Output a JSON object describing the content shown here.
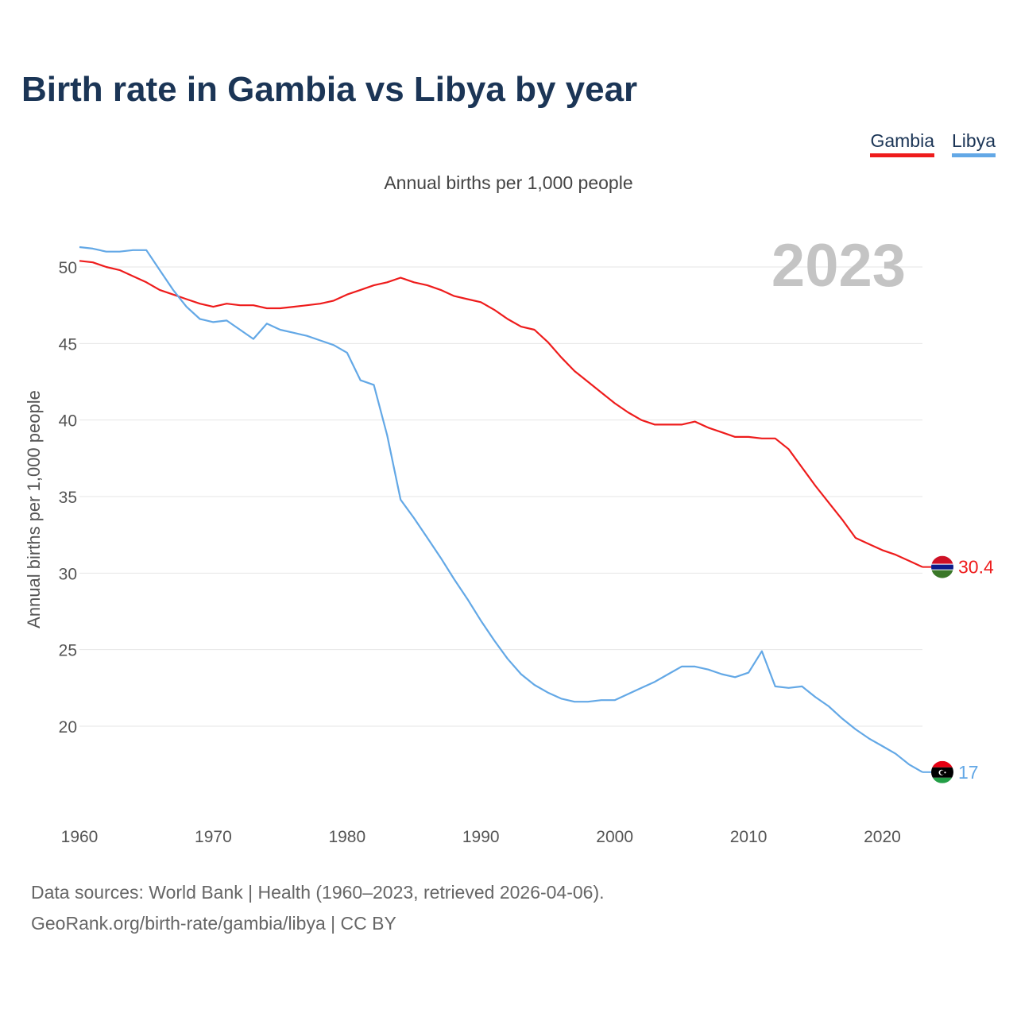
{
  "title": "Birth rate in Gambia vs Libya by year",
  "subtitle": "Annual births per 1,000 people",
  "legend": [
    {
      "name": "Gambia",
      "color": "#ee1c1c"
    },
    {
      "name": "Libya",
      "color": "#63a8e6"
    }
  ],
  "footer": {
    "line1": "Data sources: World Bank | Health (1960–2023, retrieved 2026-04-06).",
    "line2": "GeoRank.org/birth-rate/gambia/libya | CC BY"
  },
  "chart_data": {
    "type": "line",
    "title": "Birth rate in Gambia vs Libya by year",
    "ylabel": "Annual births per 1,000 people",
    "xlabel": "",
    "current_year": "2023",
    "xlim": [
      1960,
      2023
    ],
    "ylim": [
      15,
      52.5
    ],
    "x_ticks": [
      1960,
      1970,
      1980,
      1990,
      2000,
      2010,
      2020
    ],
    "y_ticks": [
      20,
      25,
      30,
      35,
      40,
      45,
      50
    ],
    "grid": true,
    "x": [
      1960,
      1961,
      1962,
      1963,
      1964,
      1965,
      1966,
      1967,
      1968,
      1969,
      1970,
      1971,
      1972,
      1973,
      1974,
      1975,
      1976,
      1977,
      1978,
      1979,
      1980,
      1981,
      1982,
      1983,
      1984,
      1985,
      1986,
      1987,
      1988,
      1989,
      1990,
      1991,
      1992,
      1993,
      1994,
      1995,
      1996,
      1997,
      1998,
      1999,
      2000,
      2001,
      2002,
      2003,
      2004,
      2005,
      2006,
      2007,
      2008,
      2009,
      2010,
      2011,
      2012,
      2013,
      2014,
      2015,
      2016,
      2017,
      2018,
      2019,
      2020,
      2021,
      2022,
      2023
    ],
    "series": [
      {
        "name": "Gambia",
        "color": "#ee1c1c",
        "end_label": "30.4",
        "values": [
          50.4,
          50.3,
          50.0,
          49.8,
          49.4,
          49.0,
          48.5,
          48.2,
          47.9,
          47.6,
          47.4,
          47.6,
          47.5,
          47.5,
          47.3,
          47.3,
          47.4,
          47.5,
          47.6,
          47.8,
          48.2,
          48.5,
          48.8,
          49.0,
          49.3,
          49.0,
          48.8,
          48.5,
          48.1,
          47.9,
          47.7,
          47.2,
          46.6,
          46.1,
          45.9,
          45.1,
          44.1,
          43.2,
          42.5,
          41.8,
          41.1,
          40.5,
          40.0,
          39.7,
          39.7,
          39.7,
          39.9,
          39.5,
          39.2,
          38.9,
          38.9,
          38.8,
          38.8,
          38.1,
          36.9,
          35.7,
          34.6,
          33.5,
          32.3,
          31.9,
          31.5,
          31.2,
          30.8,
          30.4
        ]
      },
      {
        "name": "Libya",
        "color": "#63a8e6",
        "end_label": "17",
        "values": [
          51.3,
          51.2,
          51.0,
          51.0,
          51.1,
          51.1,
          49.8,
          48.5,
          47.4,
          46.6,
          46.4,
          46.5,
          45.9,
          45.3,
          46.3,
          45.9,
          45.7,
          45.5,
          45.2,
          44.9,
          44.4,
          42.6,
          42.3,
          39.0,
          34.8,
          33.6,
          32.3,
          31.0,
          29.6,
          28.3,
          26.9,
          25.6,
          24.4,
          23.4,
          22.7,
          22.2,
          21.8,
          21.6,
          21.6,
          21.7,
          21.7,
          22.1,
          22.5,
          22.9,
          23.4,
          23.9,
          23.9,
          23.7,
          23.4,
          23.2,
          23.5,
          24.9,
          22.6,
          22.5,
          22.6,
          21.9,
          21.3,
          20.5,
          19.8,
          19.2,
          18.7,
          18.2,
          17.5,
          17.0
        ]
      }
    ]
  }
}
